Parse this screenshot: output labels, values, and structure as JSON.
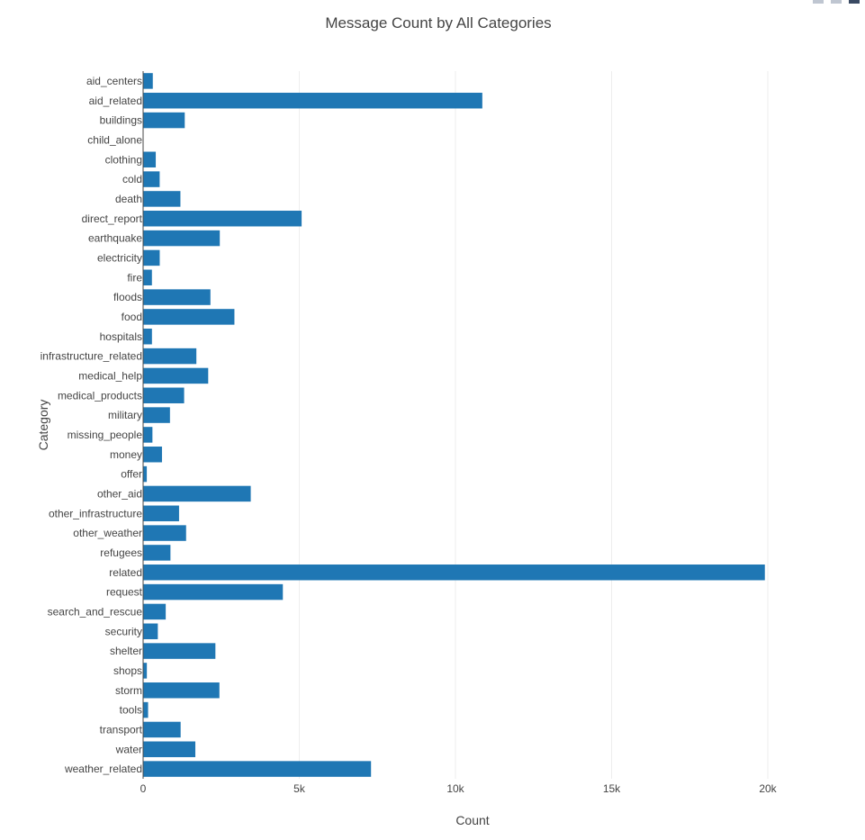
{
  "chart_data": {
    "type": "bar",
    "orientation": "horizontal",
    "title": "Message Count by All Categories",
    "xlabel": "Count",
    "ylabel": "Category",
    "xlim": [
      0,
      22500
    ],
    "x_ticks": [
      {
        "value": 0,
        "label": "0"
      },
      {
        "value": 5000,
        "label": "5k"
      },
      {
        "value": 10000,
        "label": "10k"
      },
      {
        "value": 15000,
        "label": "15k"
      },
      {
        "value": 20000,
        "label": "20k"
      }
    ],
    "grid": true,
    "bar_color": "#1f77b4",
    "categories": [
      "aid_centers",
      "aid_related",
      "buildings",
      "child_alone",
      "clothing",
      "cold",
      "death",
      "direct_report",
      "earthquake",
      "electricity",
      "fire",
      "floods",
      "food",
      "hospitals",
      "infrastructure_related",
      "medical_help",
      "medical_products",
      "military",
      "missing_people",
      "money",
      "offer",
      "other_aid",
      "other_infrastructure",
      "other_weather",
      "refugees",
      "related",
      "request",
      "search_and_rescue",
      "security",
      "shelter",
      "shops",
      "storm",
      "tools",
      "transport",
      "water",
      "weather_related"
    ],
    "values": [
      310,
      10860,
      1333,
      0,
      405,
      530,
      1194,
      5075,
      2455,
      532,
      282,
      2155,
      2923,
      283,
      1705,
      2084,
      1313,
      860,
      298,
      604,
      118,
      3446,
      1151,
      1376,
      875,
      19906,
      4474,
      724,
      471,
      2314,
      120,
      2443,
      159,
      1201,
      1672,
      7297
    ]
  }
}
